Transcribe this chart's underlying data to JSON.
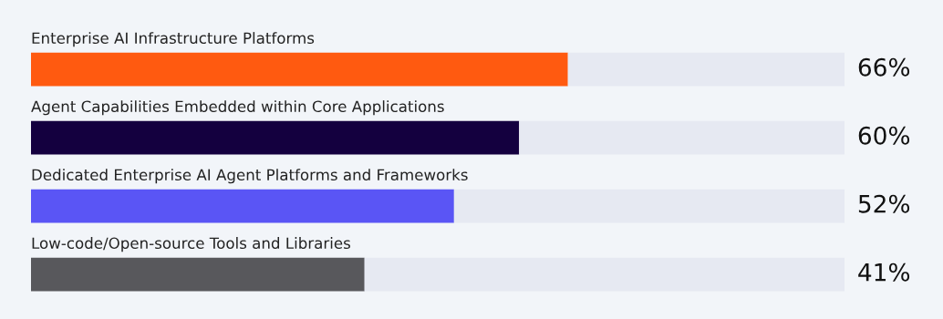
{
  "chart_data": {
    "type": "bar",
    "orientation": "horizontal",
    "stacked": true,
    "categories": [
      "Enterprise AI Infrastructure Platforms",
      "Agent Capabilities Embedded within Core Applications",
      "Dedicated Enterprise AI Agent Platforms and Frameworks",
      "Low-code/Open-source Tools and Libraries"
    ],
    "series": [
      {
        "colors": [
          "#ff5a10",
          "#14003f",
          "#5a55f5",
          "#58585c"
        ],
        "values": [
          66,
          60,
          52,
          41
        ],
        "value_labels": [
          "66%",
          "60%",
          "52%",
          "41%"
        ]
      },
      {
        "color": "#e6e9f2",
        "values": [
          34,
          40,
          48,
          59
        ]
      }
    ],
    "xlim": [
      0,
      100
    ],
    "tick_labels": false
  }
}
